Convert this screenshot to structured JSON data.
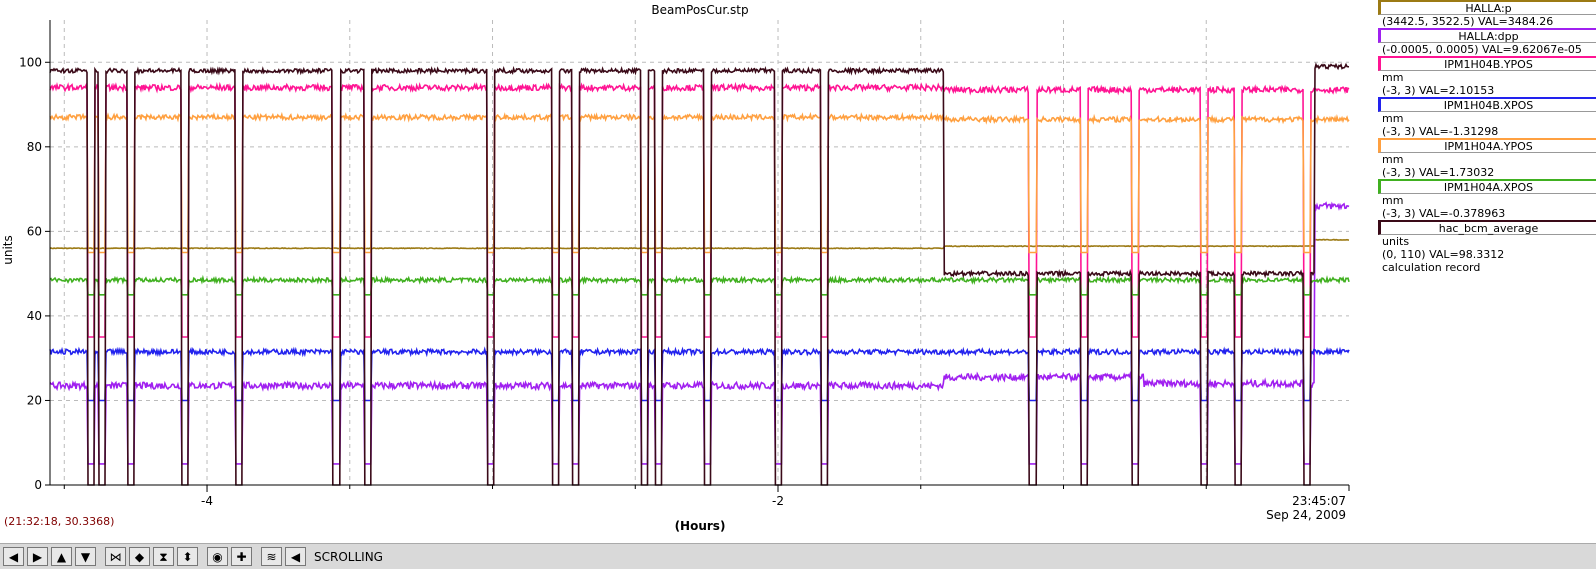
{
  "chart_data": {
    "type": "line",
    "title": "BeamPosCur.stp",
    "xlabel": "(Hours)",
    "ylabel": "units",
    "xlim": [
      -4.55,
      0
    ],
    "ylim": [
      0,
      110
    ],
    "x_ticks": [
      -4,
      -2
    ],
    "x_tick_labels": [
      "-4",
      "-2"
    ],
    "y_ticks": [
      0,
      20,
      40,
      60,
      80,
      100
    ],
    "y_tick_labels": [
      "0",
      "20",
      "40",
      "60",
      "80",
      "100"
    ],
    "grid": true,
    "end_time": "23:45:07",
    "end_date": "Sep 24, 2009",
    "beam_trips_hours": [
      -4.42,
      -4.38,
      -4.28,
      -4.09,
      -3.9,
      -3.56,
      -3.45,
      -3.02,
      -2.79,
      -2.72,
      -2.48,
      -2.43,
      -2.26,
      -2.01,
      -1.85,
      -1.12,
      -0.94,
      -0.76,
      -0.52,
      -0.4,
      -0.16
    ],
    "series": [
      {
        "name": "HALLA:p",
        "color": "#9c7a14",
        "level_segments": [
          [
            -4.55,
            -1.42,
            56
          ],
          [
            -1.42,
            -0.12,
            56.5
          ],
          [
            -0.12,
            0,
            58
          ]
        ]
      },
      {
        "name": "HALLA:dpp",
        "color": "#a020f0",
        "level_segments": [
          [
            -4.55,
            -1.42,
            23.5
          ],
          [
            -1.42,
            -0.72,
            25.5
          ],
          [
            -0.72,
            -0.12,
            24
          ],
          [
            -0.12,
            0,
            66
          ]
        ]
      },
      {
        "name": "IPM1H04B.YPOS",
        "color": "#ff1493",
        "level_segments": [
          [
            -4.55,
            -1.42,
            94
          ],
          [
            -1.42,
            0,
            93.5
          ]
        ]
      },
      {
        "name": "IPM1H04B.XPOS",
        "color": "#2222ee",
        "level_segments": [
          [
            -4.55,
            0,
            31.5
          ]
        ]
      },
      {
        "name": "IPM1H04A.YPOS",
        "color": "#ffa040",
        "level_segments": [
          [
            -4.55,
            -1.42,
            87
          ],
          [
            -1.42,
            0,
            86.5
          ]
        ]
      },
      {
        "name": "IPM1H04A.XPOS",
        "color": "#40b020",
        "level_segments": [
          [
            -4.55,
            -1.42,
            48.5
          ],
          [
            -1.42,
            0,
            48.5
          ]
        ]
      },
      {
        "name": "hac_bcm_average",
        "color": "#3a0a18",
        "level_segments": [
          [
            -4.55,
            -1.42,
            98
          ],
          [
            -1.42,
            -0.12,
            50
          ],
          [
            -0.12,
            0,
            99
          ]
        ]
      }
    ]
  },
  "legend": [
    {
      "name": "HALLA:p",
      "color": "#9c7a14",
      "lines": [
        "(3442.5, 3522.5) VAL=3484.26"
      ]
    },
    {
      "name": "HALLA:dpp",
      "color": "#a020f0",
      "lines": [
        "(-0.0005, 0.0005) VAL=9.62067e-05"
      ]
    },
    {
      "name": "IPM1H04B.YPOS",
      "color": "#ff1493",
      "lines": [
        "mm",
        "(-3, 3) VAL=2.10153"
      ]
    },
    {
      "name": "IPM1H04B.XPOS",
      "color": "#2222ee",
      "lines": [
        "mm",
        "(-3, 3) VAL=-1.31298"
      ]
    },
    {
      "name": "IPM1H04A.YPOS",
      "color": "#ffa040",
      "lines": [
        "mm",
        "(-3, 3) VAL=1.73032"
      ]
    },
    {
      "name": "IPM1H04A.XPOS",
      "color": "#40b020",
      "lines": [
        "mm",
        "(-3, 3) VAL=-0.378963"
      ]
    },
    {
      "name": "hac_bcm_average",
      "color": "#3a0a18",
      "lines": [
        "units",
        "(0, 110) VAL=98.3312",
        "calculation record"
      ]
    }
  ],
  "status": {
    "cursor_readout": "(21:32:18, 30.3368)"
  },
  "toolbar": {
    "buttons": [
      {
        "name": "pan-left-button",
        "icon": "arrow-left-icon",
        "glyph": "◀"
      },
      {
        "name": "pan-right-button",
        "icon": "arrow-right-icon",
        "glyph": "▶"
      },
      {
        "name": "pan-up-button",
        "icon": "arrow-up-icon",
        "glyph": "▲"
      },
      {
        "name": "pan-down-button",
        "icon": "arrow-down-icon",
        "glyph": "▼"
      },
      {
        "name": "zoom-in-x-button",
        "icon": "zoom-in-x-icon",
        "glyph": "⋈"
      },
      {
        "name": "zoom-out-x-button",
        "icon": "zoom-out-x-icon",
        "glyph": "◆"
      },
      {
        "name": "zoom-in-y-button",
        "icon": "zoom-in-y-icon",
        "glyph": "⧗"
      },
      {
        "name": "zoom-out-y-button",
        "icon": "zoom-out-y-icon",
        "glyph": "⬍"
      },
      {
        "name": "reset-button",
        "icon": "circle-icon",
        "glyph": "◉"
      },
      {
        "name": "add-button",
        "icon": "plus-icon",
        "glyph": "✚"
      },
      {
        "name": "config-button",
        "icon": "config-icon",
        "glyph": "≋"
      },
      {
        "name": "back-button",
        "icon": "back-icon",
        "glyph": "◀"
      }
    ],
    "mode_label": "SCROLLING"
  }
}
